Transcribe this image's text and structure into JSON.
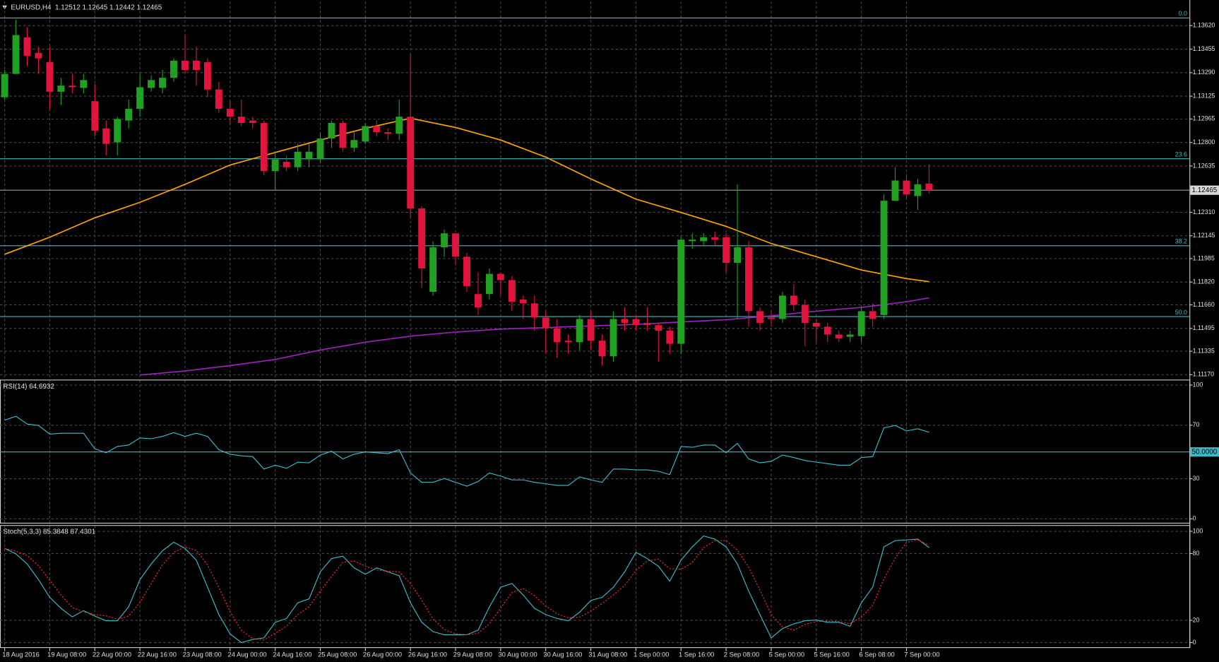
{
  "chart_data": [
    {
      "type": "candlestick",
      "title": "EURUSD,H4  1.12512 1.12645 1.12442 1.12465",
      "categories": [
        "18 Aug 2016",
        null,
        null,
        null,
        "19 Aug 08:00",
        null,
        null,
        null,
        "22 Aug 00:00",
        null,
        null,
        null,
        "22 Aug 16:00",
        null,
        null,
        null,
        "23 Aug 08:00",
        null,
        null,
        null,
        "24 Aug 00:00",
        null,
        null,
        null,
        "24 Aug 16:00",
        null,
        null,
        null,
        "25 Aug 08:00",
        null,
        null,
        null,
        "26 Aug 00:00",
        null,
        null,
        null,
        "26 Aug 16:00",
        null,
        null,
        null,
        "29 Aug 08:00",
        null,
        null,
        null,
        "30 Aug 00:00",
        null,
        null,
        null,
        "30 Aug 16:00",
        null,
        null,
        null,
        "31 Aug 08:00",
        null,
        null,
        null,
        "1 Sep 00:00",
        null,
        null,
        null,
        "1 Sep 16:00",
        null,
        null,
        null,
        "2 Sep 08:00",
        null,
        null,
        null,
        "5 Sep 00:00",
        null,
        null,
        null,
        "5 Sep 16:00",
        null,
        null,
        null,
        "6 Sep 08:00",
        null,
        null,
        null,
        "7 Sep 00:00",
        null,
        null
      ],
      "open": [
        1.13117,
        1.13281,
        1.13538,
        1.13429,
        1.13363,
        1.13156,
        1.13199,
        1.13183,
        1.1309,
        1.12899,
        1.12801,
        1.12954,
        1.13036,
        1.13183,
        1.13183,
        1.13254,
        1.13374,
        1.13374,
        1.13363,
        1.13172,
        1.13036,
        1.12981,
        1.12954,
        1.12937,
        1.12599,
        1.12664,
        1.12626,
        1.12681,
        1.12681,
        1.12828,
        1.12937,
        1.12763,
        1.12806,
        1.12915,
        1.12872,
        1.12861,
        1.12981,
        1.12337,
        1.11752,
        1.12064,
        1.12162,
        1.11998,
        1.11736,
        1.11736,
        1.11878,
        1.11834,
        1.11698,
        1.11671,
        1.11572,
        1.11496,
        1.11409,
        1.11398,
        1.11561,
        1.11409,
        1.11299,
        1.11561,
        1.11561,
        1.11534,
        1.11518,
        1.11479,
        1.11387,
        1.12107,
        1.12107,
        1.12135,
        1.12135,
        1.11955,
        1.12064,
        1.11616,
        1.11572,
        1.11561,
        1.11725,
        1.1166,
        1.11534,
        1.11507,
        1.11452,
        1.11436,
        1.11441,
        1.11616,
        1.11589,
        1.12391,
        1.12533,
        1.12424,
        1.12512
      ],
      "high": [
        1.13309,
        1.13663,
        1.13609,
        1.13472,
        1.13472,
        1.13254,
        1.13281,
        1.13281,
        1.1321,
        1.12954,
        1.12981,
        1.13101,
        1.13281,
        1.1327,
        1.13309,
        1.1339,
        1.13554,
        1.13472,
        1.1339,
        1.13227,
        1.1309,
        1.13101,
        1.12981,
        1.12954,
        1.12735,
        1.12708,
        1.1279,
        1.1279,
        1.12872,
        1.12954,
        1.12954,
        1.12872,
        1.12937,
        1.12954,
        1.12899,
        1.13101,
        1.13418,
        1.12353,
        1.12107,
        1.12189,
        1.12162,
        1.12025,
        1.11889,
        1.11916,
        1.11889,
        1.11862,
        1.11725,
        1.11725,
        1.11616,
        1.11561,
        1.11452,
        1.11589,
        1.11616,
        1.11452,
        1.11616,
        1.11643,
        1.11589,
        1.11643,
        1.11534,
        1.11507,
        1.12135,
        1.12162,
        1.12162,
        1.12173,
        1.12162,
        1.12506,
        1.12107,
        1.11643,
        1.11616,
        1.11752,
        1.11807,
        1.11698,
        1.11561,
        1.11534,
        1.11479,
        1.11479,
        1.11643,
        1.11671,
        1.12435,
        1.12626,
        1.12571,
        1.12544,
        1.12645
      ],
      "low": [
        1.13101,
        1.13281,
        1.13336,
        1.13281,
        1.13036,
        1.13063,
        1.13145,
        1.13145,
        1.12844,
        1.12708,
        1.12708,
        1.12899,
        1.12981,
        1.13156,
        1.13145,
        1.13227,
        1.13281,
        1.13199,
        1.13117,
        1.13008,
        1.12926,
        1.12915,
        1.12899,
        1.12571,
        1.12462,
        1.12599,
        1.12599,
        1.12626,
        1.12653,
        1.12763,
        1.12735,
        1.12735,
        1.1279,
        1.12844,
        1.12817,
        1.12817,
        1.12271,
        1.1178,
        1.11725,
        1.11998,
        1.11944,
        1.11752,
        1.11589,
        1.11698,
        1.11725,
        1.11616,
        1.11561,
        1.11479,
        1.11316,
        1.11288,
        1.11316,
        1.11343,
        1.11343,
        1.11234,
        1.11261,
        1.11479,
        1.11479,
        1.11479,
        1.11261,
        1.11316,
        1.11316,
        1.12053,
        1.1208,
        1.1208,
        1.11889,
        1.11561,
        1.11507,
        1.11479,
        1.11507,
        1.11534,
        1.11616,
        1.1137,
        1.11398,
        1.11398,
        1.11398,
        1.11398,
        1.11398,
        1.11507,
        1.11561,
        1.12391,
        1.12408,
        1.12326,
        1.12442
      ],
      "close": [
        1.13281,
        1.13554,
        1.13407,
        1.1339,
        1.13156,
        1.13199,
        1.13188,
        1.13238,
        1.12883,
        1.1279,
        1.12965,
        1.13036,
        1.13188,
        1.13238,
        1.13254,
        1.13374,
        1.13309,
        1.13309,
        1.13172,
        1.13036,
        1.12981,
        1.12937,
        1.12937,
        1.12599,
        1.12681,
        1.12626,
        1.12735,
        1.12735,
        1.12828,
        1.12937,
        1.12763,
        1.12817,
        1.12915,
        1.12872,
        1.12861,
        1.12981,
        1.12337,
        1.11916,
        1.12064,
        1.12162,
        1.11998,
        1.11791,
        1.11643,
        1.11878,
        1.11834,
        1.11682,
        1.11671,
        1.11572,
        1.11496,
        1.11398,
        1.11398,
        1.11561,
        1.11409,
        1.11299,
        1.11561,
        1.11534,
        1.11518,
        1.11518,
        1.11479,
        1.11387,
        1.12118,
        1.12118,
        1.12135,
        1.12118,
        1.11955,
        1.12064,
        1.11616,
        1.11534,
        1.11561,
        1.11725,
        1.1166,
        1.11534,
        1.11507,
        1.11452,
        1.11425,
        1.11452,
        1.11616,
        1.11561,
        1.12391,
        1.12533,
        1.12435,
        1.12506,
        1.12465
      ],
      "up_color": "#22a022",
      "down_color": "#e0143c",
      "overlays": [
        {
          "color": "#ffa500",
          "x": [
            0,
            4,
            8,
            12,
            16,
            20,
            24,
            28,
            32,
            36,
            40,
            44,
            48,
            52,
            56,
            60,
            64,
            68,
            72,
            76,
            80,
            82
          ],
          "values": [
            1.12015,
            1.12135,
            1.12271,
            1.1238,
            1.12506,
            1.12642,
            1.1273,
            1.12817,
            1.12899,
            1.1297,
            1.12905,
            1.12817,
            1.12697,
            1.12544,
            1.12402,
            1.12309,
            1.12211,
            1.12091,
            1.11998,
            1.11905,
            1.11845,
            1.11823
          ]
        },
        {
          "color": "#a020c0",
          "x": [
            12,
            16,
            20,
            24,
            28,
            32,
            36,
            40,
            44,
            48,
            52,
            56,
            60,
            64,
            68,
            72,
            76,
            80,
            82
          ],
          "values": [
            1.11168,
            1.11196,
            1.11234,
            1.11277,
            1.11343,
            1.11398,
            1.11441,
            1.11469,
            1.1149,
            1.11501,
            1.11512,
            1.11523,
            1.1154,
            1.11556,
            1.11583,
            1.11616,
            1.11643,
            1.11682,
            1.11709
          ]
        }
      ],
      "levels": [
        {
          "label": "0.0",
          "value": 1.13674
        },
        {
          "label": "23.6",
          "value": 1.12686
        },
        {
          "label": "38.2",
          "value": 1.12075
        },
        {
          "label": "50.0",
          "value": 1.11578
        }
      ],
      "level_color": "#40b8c4",
      "last_price": {
        "value": 1.12465,
        "label": "1.12465"
      },
      "last_price_color": "#9a9a9a",
      "ylim": [
        1.11141,
        1.13789
      ],
      "yticks": [
        {
          "value": 1.1362,
          "label": "1.13620"
        },
        {
          "value": 1.13455,
          "label": "1.13455"
        },
        {
          "value": 1.1329,
          "label": "1.13290"
        },
        {
          "value": 1.13125,
          "label": "1.13125"
        },
        {
          "value": 1.12965,
          "label": "1.12965"
        },
        {
          "value": 1.128,
          "label": "1.12800"
        },
        {
          "value": 1.12635,
          "label": "1.12635"
        },
        {
          "value": 1.1231,
          "label": "1.12310"
        },
        {
          "value": 1.12145,
          "label": "1.12145"
        },
        {
          "value": 1.11985,
          "label": "1.11985"
        },
        {
          "value": 1.1182,
          "label": "1.11820"
        },
        {
          "value": 1.1166,
          "label": "1.11660"
        },
        {
          "value": 1.11495,
          "label": "1.11495"
        },
        {
          "value": 1.11335,
          "label": "1.11335"
        },
        {
          "value": 1.1117,
          "label": "1.11170"
        }
      ],
      "grid": true
    },
    {
      "type": "line",
      "title": "RSI(14) 64.6932",
      "series": [
        {
          "color": "#3ec0d0",
          "values": [
            73.8,
            76.7,
            70.9,
            69.8,
            63.4,
            64.0,
            64.0,
            64.0,
            52.3,
            49.4,
            54.1,
            55.2,
            60.5,
            59.9,
            61.6,
            64.5,
            61.6,
            64.0,
            61.6,
            51.7,
            48.3,
            47.1,
            46.5,
            37.2,
            40.1,
            37.8,
            42.4,
            41.9,
            47.7,
            50.6,
            44.8,
            48.3,
            50.0,
            49.4,
            48.8,
            51.7,
            34.3,
            27.3,
            27.3,
            30.2,
            27.3,
            24.4,
            27.9,
            34.3,
            32.0,
            29.1,
            29.1,
            27.3,
            26.2,
            25.0,
            25.0,
            31.4,
            29.1,
            27.3,
            37.2,
            37.2,
            36.6,
            36.6,
            35.5,
            33.1,
            54.1,
            53.5,
            55.2,
            55.2,
            49.4,
            56.4,
            44.8,
            41.9,
            43.0,
            47.7,
            45.9,
            43.6,
            42.4,
            41.3,
            40.1,
            40.1,
            45.9,
            46.5,
            68.0,
            69.8,
            65.7,
            67.4,
            64.7
          ]
        }
      ],
      "level": {
        "value": 50,
        "label": "50.0000"
      },
      "level_color": "#40b8c4",
      "ylim": [
        0,
        100
      ],
      "yticks": [
        0,
        30,
        70,
        100
      ],
      "grid": true
    },
    {
      "type": "line",
      "title": "Stoch(5,3,3) 85.3848 87.4301",
      "series": [
        {
          "color": "#3ec0d0",
          "values": [
            84.6,
            79.7,
            70.6,
            56.6,
            40.6,
            30.8,
            23.1,
            28.7,
            23.8,
            19.6,
            19.6,
            32.2,
            56.6,
            70.6,
            82.5,
            90.2,
            84.6,
            74.1,
            49.7,
            25.2,
            7.7,
            0.0,
            2.8,
            4.2,
            18.2,
            21.7,
            35.7,
            39.2,
            63.6,
            75.5,
            77.6,
            67.1,
            61.5,
            67.1,
            63.6,
            60.1,
            35.7,
            18.2,
            9.8,
            7.0,
            7.0,
            7.0,
            11.2,
            32.2,
            49.7,
            53.1,
            42.7,
            30.8,
            25.2,
            21.7,
            19.6,
            27.3,
            37.8,
            40.6,
            49.7,
            63.6,
            81.1,
            75.5,
            68.5,
            55.2,
            74.1,
            86.0,
            95.8,
            93.0,
            86.0,
            70.6,
            46.2,
            25.2,
            4.2,
            12.6,
            16.8,
            19.6,
            20.3,
            18.2,
            18.2,
            14.7,
            35.7,
            49.7,
            86.0,
            91.6,
            92.3,
            93.0,
            85.4
          ]
        },
        {
          "color": "#ff2a2a",
          "dash": true,
          "values": [
            84.6,
            82.2,
            78.3,
            69.0,
            55.9,
            42.7,
            31.5,
            27.5,
            25.2,
            24.0,
            21.0,
            23.8,
            36.1,
            53.1,
            69.9,
            81.1,
            85.8,
            83.0,
            69.5,
            49.7,
            27.5,
            11.0,
            3.5,
            2.3,
            8.4,
            14.7,
            25.2,
            32.2,
            46.2,
            59.4,
            72.2,
            73.4,
            68.7,
            65.2,
            64.1,
            63.6,
            53.1,
            38.0,
            21.2,
            11.7,
            7.9,
            7.0,
            8.4,
            16.8,
            31.0,
            45.0,
            48.5,
            42.2,
            32.9,
            25.9,
            22.2,
            22.9,
            28.2,
            35.2,
            42.7,
            51.3,
            64.8,
            73.4,
            75.0,
            66.4,
            65.9,
            71.8,
            85.3,
            91.6,
            91.6,
            83.2,
            67.6,
            47.3,
            25.2,
            14.0,
            11.2,
            16.3,
            18.9,
            19.4,
            18.9,
            17.0,
            22.9,
            33.4,
            57.1,
            75.8,
            90.0,
            92.3,
            87.4
          ]
        }
      ],
      "ylim": [
        0,
        100
      ],
      "yticks": [
        0,
        20,
        80,
        100
      ],
      "grid": true
    }
  ]
}
